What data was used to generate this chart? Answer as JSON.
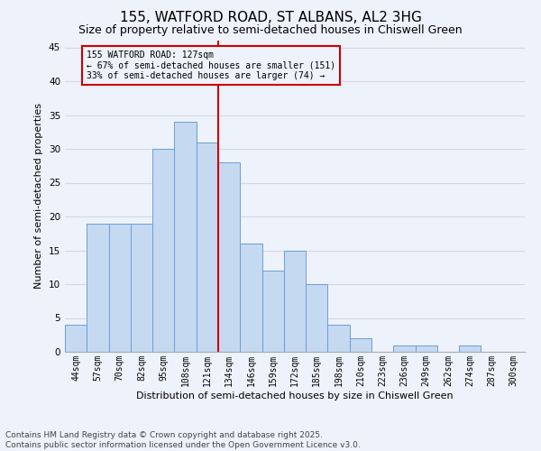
{
  "title": "155, WATFORD ROAD, ST ALBANS, AL2 3HG",
  "subtitle": "Size of property relative to semi-detached houses in Chiswell Green",
  "xlabel": "Distribution of semi-detached houses by size in Chiswell Green",
  "ylabel": "Number of semi-detached properties",
  "categories": [
    "44sqm",
    "57sqm",
    "70sqm",
    "82sqm",
    "95sqm",
    "108sqm",
    "121sqm",
    "134sqm",
    "146sqm",
    "159sqm",
    "172sqm",
    "185sqm",
    "198sqm",
    "210sqm",
    "223sqm",
    "236sqm",
    "249sqm",
    "262sqm",
    "274sqm",
    "287sqm",
    "300sqm"
  ],
  "values": [
    4,
    19,
    19,
    19,
    30,
    34,
    31,
    28,
    16,
    12,
    15,
    10,
    4,
    2,
    0,
    1,
    1,
    0,
    1,
    0,
    0
  ],
  "bar_color": "#c5d9f1",
  "bar_edge_color": "#6a9fd8",
  "grid_color": "#d0d8e8",
  "background_color": "#eef2fa",
  "vline_color": "#cc0000",
  "annotation_title": "155 WATFORD ROAD: 127sqm",
  "annotation_line1": "← 67% of semi-detached houses are smaller (151)",
  "annotation_line2": "33% of semi-detached houses are larger (74) →",
  "annotation_box_color": "#cc0000",
  "ylim": [
    0,
    46
  ],
  "yticks": [
    0,
    5,
    10,
    15,
    20,
    25,
    30,
    35,
    40,
    45
  ],
  "footnote": "Contains HM Land Registry data © Crown copyright and database right 2025.\nContains public sector information licensed under the Open Government Licence v3.0.",
  "title_fontsize": 11,
  "subtitle_fontsize": 9,
  "xlabel_fontsize": 8,
  "ylabel_fontsize": 8,
  "tick_fontsize": 7,
  "footnote_fontsize": 6.5
}
